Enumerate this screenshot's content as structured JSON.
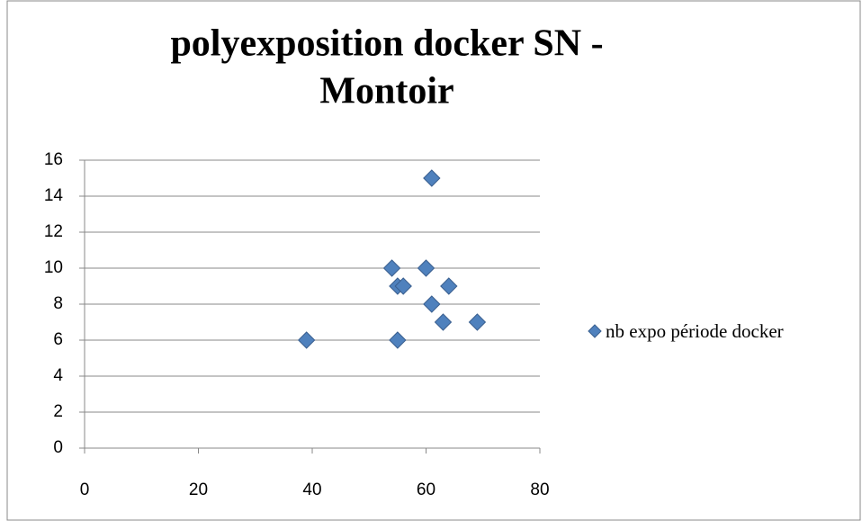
{
  "chart_data": {
    "type": "scatter",
    "title": [
      "polyexposition docker SN -",
      "Montoir"
    ],
    "series": [
      {
        "name": "nb expo période docker",
        "color": "#4f81bd",
        "x": [
          39,
          61,
          54,
          60,
          55,
          56,
          64,
          61,
          63,
          69,
          55
        ],
        "values": [
          6,
          15,
          10,
          10,
          9,
          9,
          9,
          8,
          7,
          7,
          6
        ]
      }
    ],
    "xlim": [
      0,
      80
    ],
    "xticks": [
      0,
      20,
      40,
      60,
      80
    ],
    "ylim": [
      0,
      16
    ],
    "yticks": [
      0,
      2,
      4,
      6,
      8,
      10,
      12,
      14,
      16
    ],
    "grid": true,
    "legend": "right"
  }
}
